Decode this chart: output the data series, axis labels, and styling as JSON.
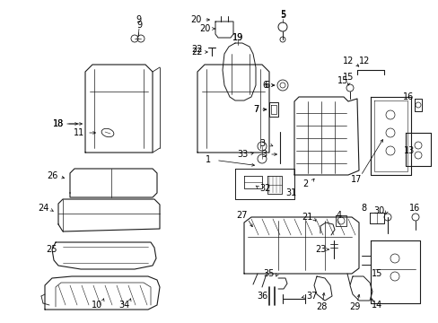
{
  "bg_color": "#ffffff",
  "fig_width": 4.89,
  "fig_height": 3.6,
  "dpi": 100,
  "line_color": "#1a1a1a",
  "text_color": "#000000",
  "font_size": 6.5
}
